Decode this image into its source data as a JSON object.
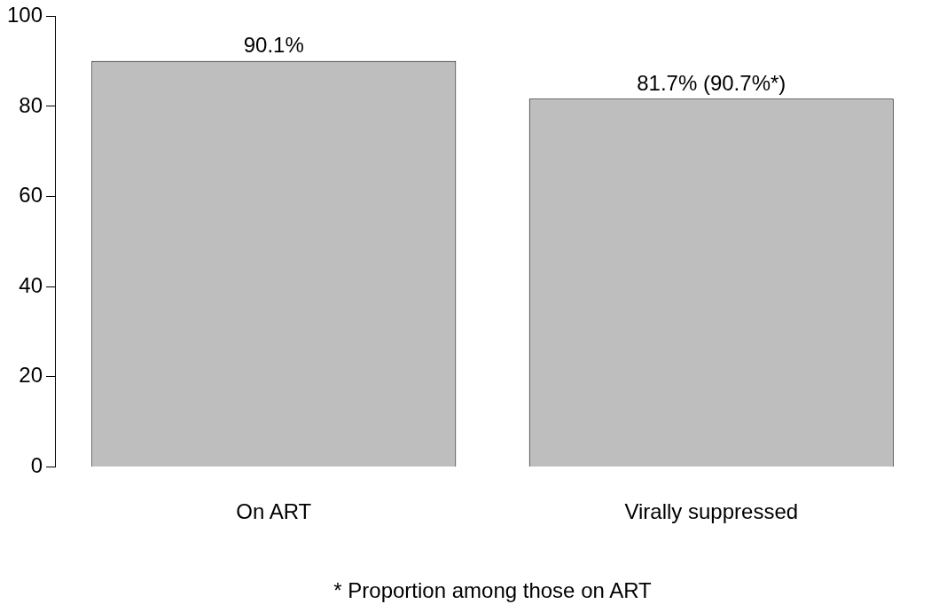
{
  "chart_data": {
    "type": "bar",
    "xlabel": "* Proportion among those on ART",
    "categories": [
      "On ART",
      "Virally suppressed"
    ],
    "values": [
      90.1,
      81.7
    ],
    "value_labels": [
      "90.1%",
      "81.7% (90.7%*)"
    ],
    "color": "#bebebe",
    "ylim": [
      0,
      100
    ],
    "yticks": [
      0,
      20,
      40,
      60,
      80,
      100
    ]
  }
}
